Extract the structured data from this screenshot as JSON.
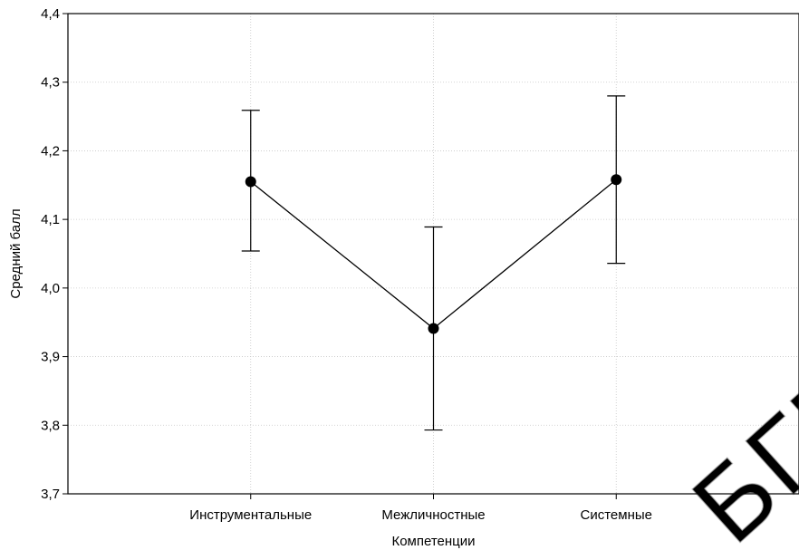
{
  "chart_data": {
    "type": "line",
    "xlabel": "Компетенции",
    "ylabel": "Средний балл",
    "categories": [
      "Инструментальные",
      "Межличностные",
      "Системные"
    ],
    "series": [
      {
        "values": [
          4.155,
          3.941,
          4.158
        ],
        "error_low": [
          4.054,
          3.793,
          4.036
        ],
        "error_high": [
          4.259,
          4.089,
          4.28
        ]
      }
    ],
    "ylim": [
      3.7,
      4.4
    ],
    "yticks": [
      "3,7",
      "3,8",
      "3,9",
      "4,0",
      "4,1",
      "4,2",
      "4,3",
      "4,4"
    ],
    "grid": true,
    "colors": {
      "line": "#000000",
      "marker": "#000000",
      "grid": "#c8c8c8",
      "watermark": "#b0b0b0"
    },
    "watermark": "БГПУ"
  }
}
